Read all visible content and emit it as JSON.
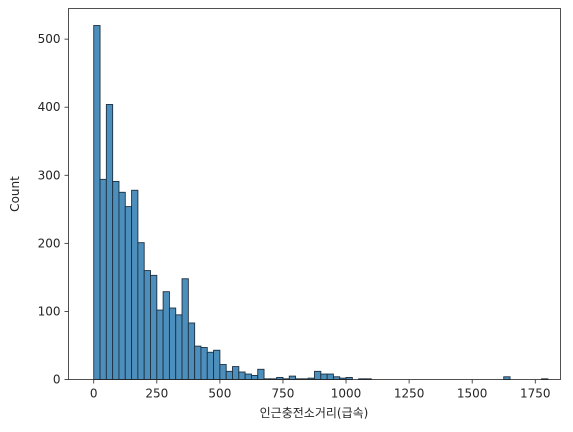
{
  "chart_data": {
    "type": "bar",
    "title": "",
    "xlabel": "인근충전소거리(급속)",
    "ylabel": "Count",
    "xlim": [
      -100,
      1850
    ],
    "ylim": [
      0,
      545
    ],
    "xticks": [
      0,
      250,
      500,
      750,
      1000,
      1250,
      1500,
      1750
    ],
    "yticks": [
      0,
      100,
      200,
      300,
      400,
      500
    ],
    "grid": false,
    "legend": "none",
    "bar_color": "#4c8fbd",
    "bar_edge_color": "#1f2f3f",
    "bin_edges": [
      0,
      25,
      50,
      75,
      100,
      125,
      150,
      175,
      200,
      225,
      250,
      275,
      300,
      325,
      350,
      375,
      400,
      425,
      450,
      475,
      500,
      525,
      550,
      575,
      600,
      625,
      650,
      675,
      700,
      725,
      750,
      775,
      800,
      825,
      850,
      875,
      900,
      925,
      950,
      975,
      1000,
      1025,
      1050,
      1075,
      1100,
      1125,
      1150,
      1175,
      1200,
      1225,
      1250,
      1275,
      1300,
      1325,
      1350,
      1375,
      1400,
      1425,
      1450,
      1475,
      1500,
      1525,
      1550,
      1575,
      1600,
      1625,
      1650,
      1675,
      1700,
      1725,
      1750,
      1775,
      1800
    ],
    "values": [
      520,
      294,
      404,
      291,
      275,
      254,
      278,
      201,
      160,
      153,
      102,
      129,
      105,
      95,
      148,
      83,
      49,
      47,
      40,
      43,
      22,
      12,
      19,
      11,
      8,
      6,
      15,
      1,
      1,
      3,
      1,
      5,
      1,
      1,
      2,
      12,
      8,
      8,
      4,
      2,
      3,
      0,
      1,
      1,
      0,
      0,
      0,
      0,
      0,
      0,
      0,
      0,
      0,
      0,
      0,
      0,
      0,
      0,
      0,
      0,
      0,
      0,
      0,
      0,
      0,
      4,
      0,
      0,
      0,
      0,
      0,
      1
    ]
  }
}
